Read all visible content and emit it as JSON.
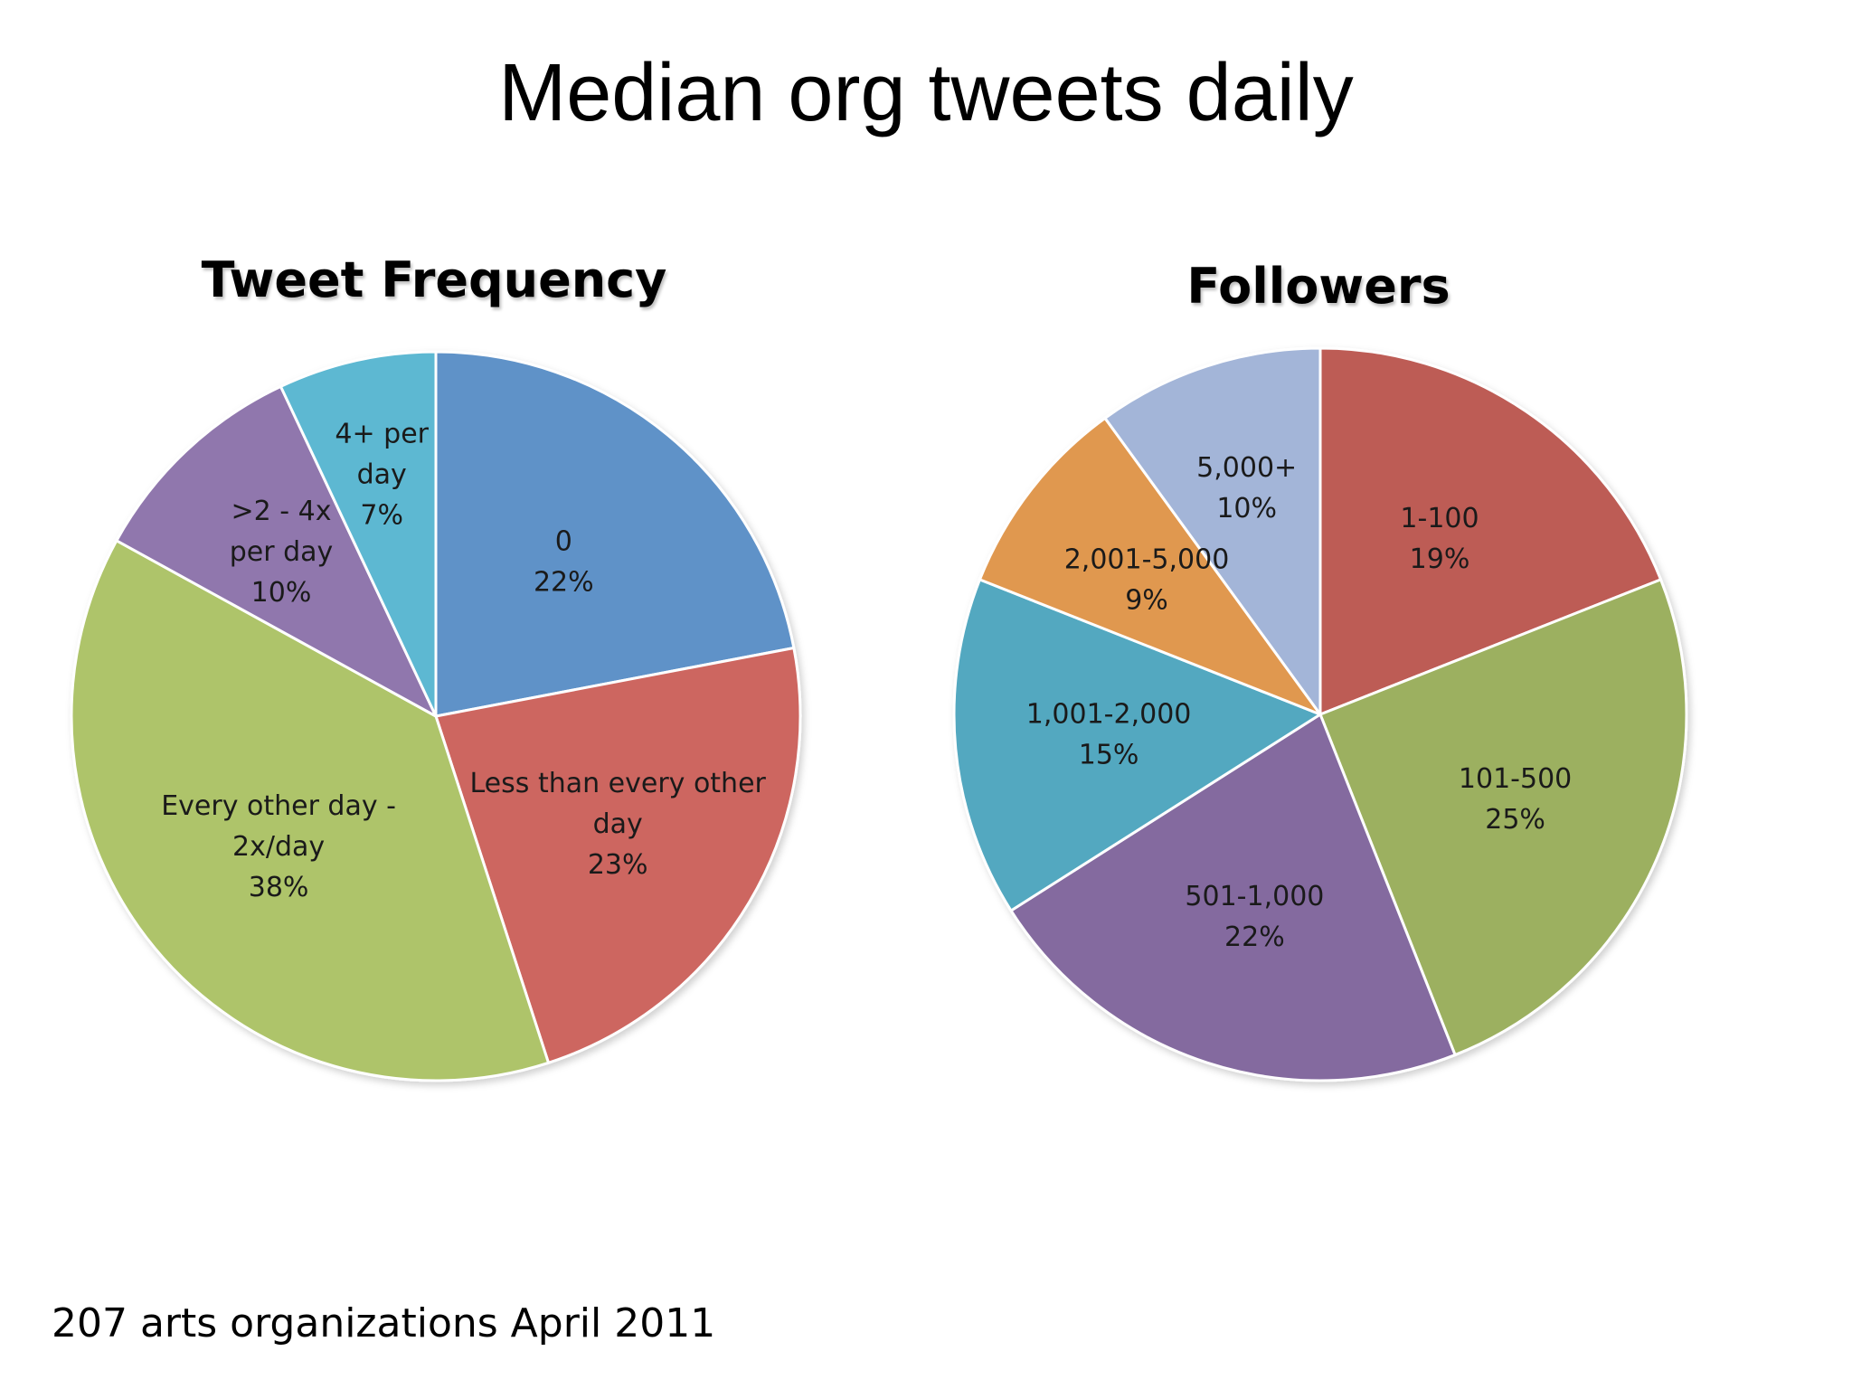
{
  "title": "Median org tweets daily",
  "footnote": "207 arts organizations April 2011",
  "chart_data": [
    {
      "type": "pie",
      "title": "Tweet Frequency",
      "slices": [
        {
          "lines": [
            "0",
            "22%"
          ],
          "value": 22,
          "color": "#5f92c8"
        },
        {
          "lines": [
            "Less than every other",
            "day",
            "23%"
          ],
          "value": 23,
          "color": "#cd6660"
        },
        {
          "lines": [
            "Every other day   -",
            "2x/day",
            "38%"
          ],
          "value": 38,
          "color": "#aec46b"
        },
        {
          "lines": [
            ">2 - 4x",
            "per day",
            "10%"
          ],
          "value": 10,
          "color": "#9077ad"
        },
        {
          "lines": [
            "4+ per",
            "day",
            "7%"
          ],
          "value": 7,
          "color": "#5db8d2"
        }
      ]
    },
    {
      "type": "pie",
      "title": "Followers",
      "slices": [
        {
          "lines": [
            "1-100",
            "19%"
          ],
          "value": 19,
          "color": "#bd5b55"
        },
        {
          "lines": [
            "101-500",
            "25%"
          ],
          "value": 25,
          "color": "#9cb060"
        },
        {
          "lines": [
            "501-1,000",
            "22%"
          ],
          "value": 22,
          "color": "#846b9f"
        },
        {
          "lines": [
            "1,001-2,000",
            "15%"
          ],
          "value": 15,
          "color": "#52a8c0"
        },
        {
          "lines": [
            "2,001-5,000",
            "9%"
          ],
          "value": 9,
          "color": "#e0984f"
        },
        {
          "lines": [
            "5,000+",
            "10%"
          ],
          "value": 10,
          "color": "#a3b5d8"
        }
      ]
    }
  ]
}
